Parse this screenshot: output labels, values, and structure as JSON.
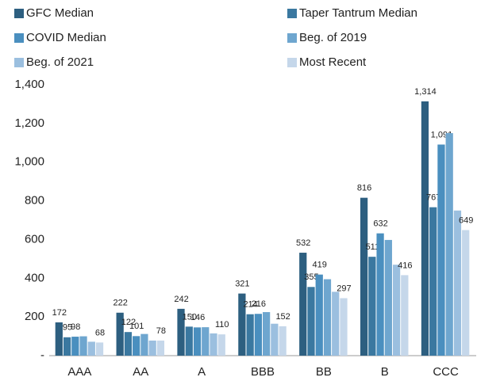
{
  "chart_data": {
    "type": "bar",
    "categories": [
      "AAA",
      "AA",
      "A",
      "BBB",
      "BB",
      "B",
      "CCC"
    ],
    "series": [
      {
        "name": "GFC Median",
        "color": "#2d5f80",
        "data_labels": true,
        "values": [
          172,
          222,
          242,
          321,
          532,
          816,
          1314
        ],
        "value_labels": [
          "172",
          "222",
          "242",
          "321",
          "532",
          "816",
          "1,314"
        ]
      },
      {
        "name": "Taper Tantrum Median",
        "color": "#3a78a0",
        "data_labels": true,
        "values": [
          95,
          122,
          150,
          214,
          355,
          511,
          767
        ]
      },
      {
        "name": "COVID Median",
        "color": "#4a8fbf",
        "data_labels": true,
        "values": [
          98,
          101,
          146,
          216,
          419,
          632,
          1091
        ],
        "value_labels": [
          "98",
          "101",
          "146",
          "216",
          "419",
          "632",
          "1,091"
        ]
      },
      {
        "name": "Beg. of 2019",
        "color": "#6ea6cf",
        "data_labels": false,
        "values": [
          100,
          112,
          147,
          225,
          395,
          598,
          1150
        ]
      },
      {
        "name": "Beg. of 2021",
        "color": "#9bbfdf",
        "data_labels": false,
        "values": [
          72,
          78,
          115,
          165,
          330,
          470,
          750
        ]
      },
      {
        "name": "Most Recent",
        "color": "#c5d7ea",
        "data_labels": true,
        "values": [
          68,
          78,
          110,
          152,
          297,
          416,
          649
        ]
      }
    ],
    "ylim": [
      0,
      1400
    ],
    "yticks": [
      {
        "value": 0,
        "label": "-"
      },
      200,
      400,
      600,
      800,
      {
        "value": 1000,
        "label": "1,000"
      },
      {
        "value": 1200,
        "label": "1,200"
      },
      {
        "value": 1400,
        "label": "1,400"
      }
    ],
    "grid": false
  }
}
